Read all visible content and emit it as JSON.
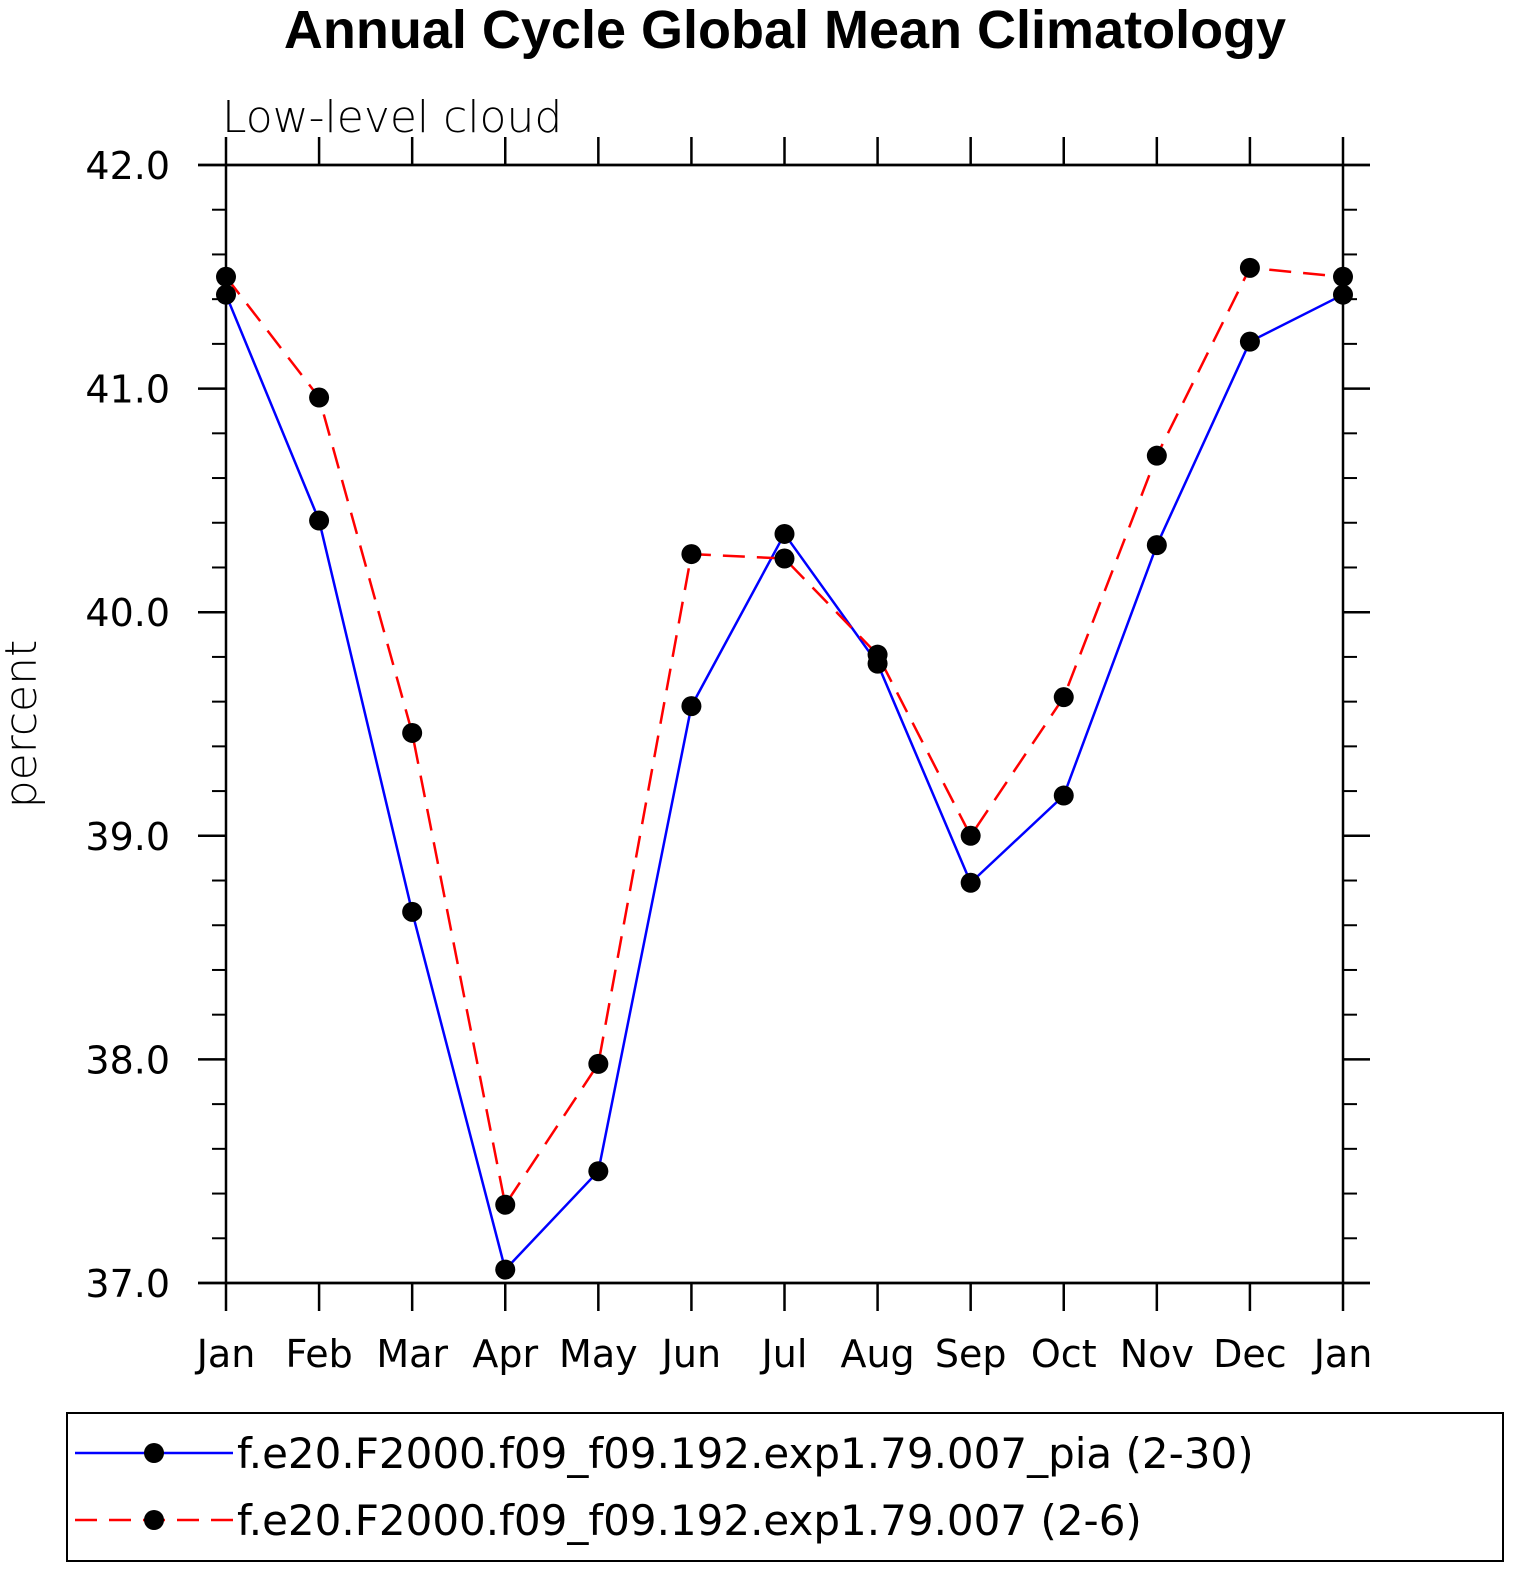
{
  "chart_data": {
    "type": "line",
    "title": "Annual Cycle Global Mean Climatology",
    "subtitle": "Low-level cloud",
    "xlabel": "",
    "ylabel": "percent",
    "categories": [
      "Jan",
      "Feb",
      "Mar",
      "Apr",
      "May",
      "Jun",
      "Jul",
      "Aug",
      "Sep",
      "Oct",
      "Nov",
      "Dec",
      "Jan"
    ],
    "ylim": [
      37.0,
      42.0
    ],
    "yticks": [
      "37.0",
      "38.0",
      "39.0",
      "40.0",
      "41.0",
      "42.0"
    ],
    "ytick_values": [
      37.0,
      38.0,
      39.0,
      40.0,
      41.0,
      42.0
    ],
    "grid": false,
    "legend_position": "bottom",
    "series": [
      {
        "name": "f.e20.F2000.f09_f09.192.exp1.79.007_pia (2-30)",
        "color": "#0000ff",
        "dash": "solid",
        "values": [
          41.42,
          40.41,
          38.66,
          37.06,
          37.5,
          39.58,
          40.35,
          39.77,
          38.79,
          39.18,
          40.3,
          41.21,
          41.42
        ]
      },
      {
        "name": "f.e20.F2000.f09_f09.192.exp1.79.007 (2-6)",
        "color": "#ff0000",
        "dash": "dashed",
        "values": [
          41.5,
          40.96,
          39.46,
          37.35,
          37.98,
          40.26,
          40.24,
          39.81,
          39.0,
          39.62,
          40.7,
          41.54,
          41.5
        ]
      }
    ]
  }
}
